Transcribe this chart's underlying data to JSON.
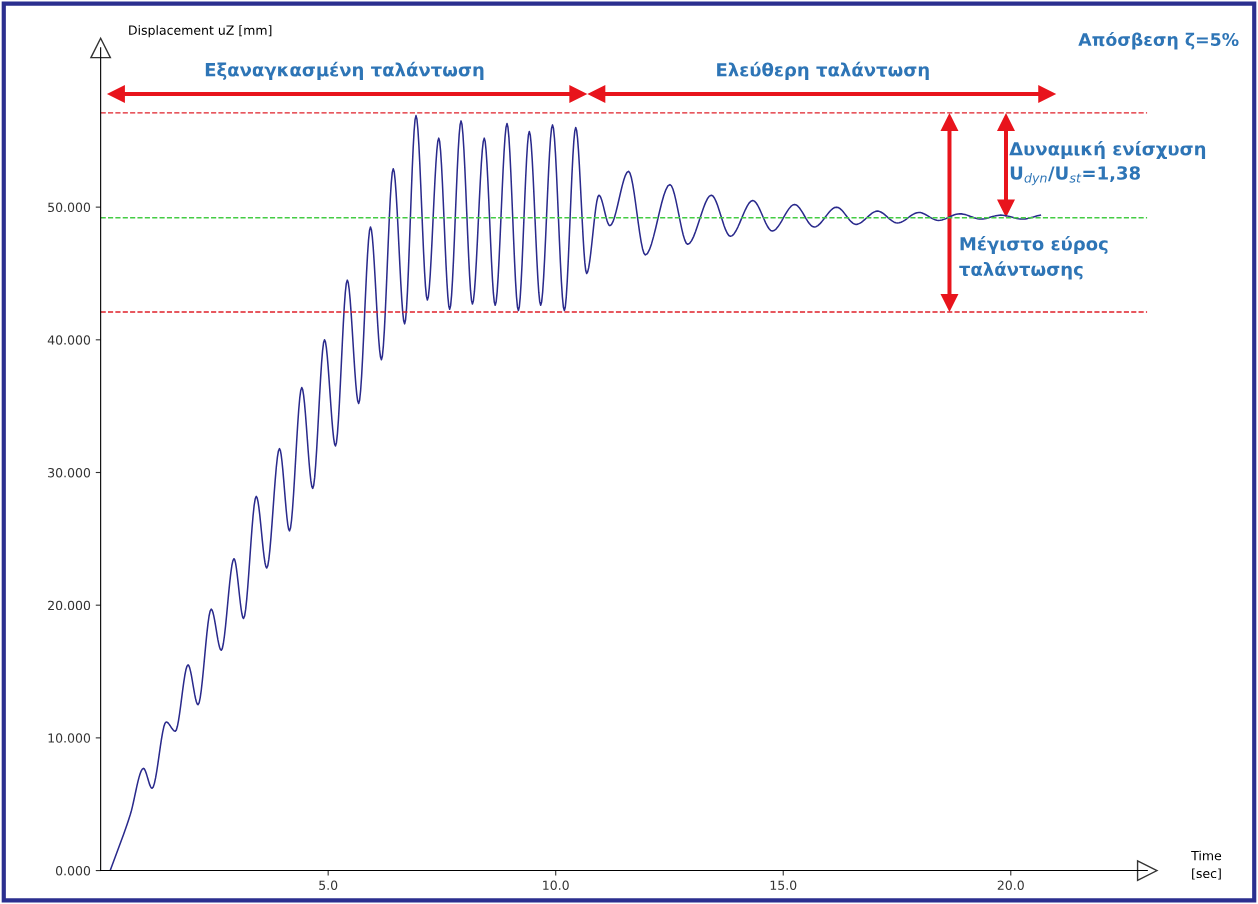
{
  "chart_data": {
    "type": "line",
    "ylabel": "Displacement uZ [mm]",
    "xlabel": "Time\n[sec]",
    "x": [
      0.21,
      0.65,
      0.94,
      1.13,
      1.44,
      1.64,
      1.92,
      2.14,
      2.43,
      2.65,
      2.93,
      3.14,
      3.42,
      3.65,
      3.93,
      4.15,
      4.42,
      4.66,
      4.92,
      5.16,
      5.42,
      5.67,
      5.93,
      6.17,
      6.43,
      6.68,
      6.93,
      7.18,
      7.43,
      7.67,
      7.92,
      8.17,
      8.43,
      8.67,
      8.93,
      9.18,
      9.42,
      9.67,
      9.93,
      10.19,
      10.44,
      10.68,
      10.95,
      11.19,
      11.6,
      11.97,
      12.51,
      12.9,
      13.42,
      13.84,
      14.33,
      14.76,
      15.25,
      15.68,
      16.17,
      16.6,
      17.07,
      17.51,
      17.98,
      18.41,
      18.88,
      19.35,
      19.78,
      20.25,
      20.65
    ],
    "series": [
      {
        "color": "#2a2a8c",
        "values": [
          0,
          4.2,
          7.7,
          6.2,
          11.2,
          10.5,
          15.5,
          12.5,
          19.7,
          16.6,
          23.5,
          19.0,
          28.2,
          22.8,
          31.8,
          25.6,
          36.4,
          28.8,
          40.0,
          32.0,
          44.5,
          35.2,
          48.5,
          38.5,
          52.9,
          41.2,
          56.9,
          43.0,
          55.2,
          42.3,
          56.5,
          42.7,
          55.2,
          42.6,
          56.3,
          42.2,
          55.7,
          42.6,
          56.2,
          42.2,
          56.0,
          45.0,
          50.9,
          48.6,
          52.7,
          46.4,
          51.7,
          47.2,
          50.9,
          47.8,
          50.5,
          48.2,
          50.2,
          48.5,
          50.0,
          48.7,
          49.7,
          48.8,
          49.6,
          49.0,
          49.5,
          49.1,
          49.4,
          49.1,
          49.4
        ]
      }
    ],
    "xlim": [
      0,
      23
    ],
    "ylim": [
      0,
      62
    ],
    "xticks": [
      {
        "value": 5,
        "label": "5.0"
      },
      {
        "value": 10,
        "label": "10.0"
      },
      {
        "value": 15,
        "label": "15.0"
      },
      {
        "value": 20,
        "label": "20.0"
      }
    ],
    "yticks": [
      {
        "value": 0,
        "label": "0.000"
      },
      {
        "value": 10,
        "label": "10.000"
      },
      {
        "value": 20,
        "label": "20.000"
      },
      {
        "value": 30,
        "label": "30.000"
      },
      {
        "value": 40,
        "label": "40.000"
      },
      {
        "value": 50,
        "label": "50.000"
      }
    ],
    "grid": false,
    "marker": "none",
    "line_style": "solid",
    "ref_lines": [
      {
        "axis": "y",
        "value": 57.1,
        "color": "#e0202a",
        "line_style": "dashed"
      },
      {
        "axis": "y",
        "value": 42.1,
        "color": "#e0202a",
        "line_style": "dashed"
      },
      {
        "axis": "y",
        "value": 49.2,
        "color": "#44cc44",
        "line_style": "dashed"
      }
    ],
    "annotations": [
      "Απόσβεση ζ=5%",
      "Εξαναγκασμένη ταλάντωση",
      "Ελεύθερη ταλάντωση",
      "Δυναμική ενίσχυση\nU$_{dyn}$/U$_{st}$=1,38",
      "Μέγιστο εύρος\nταλάντωσης"
    ]
  }
}
